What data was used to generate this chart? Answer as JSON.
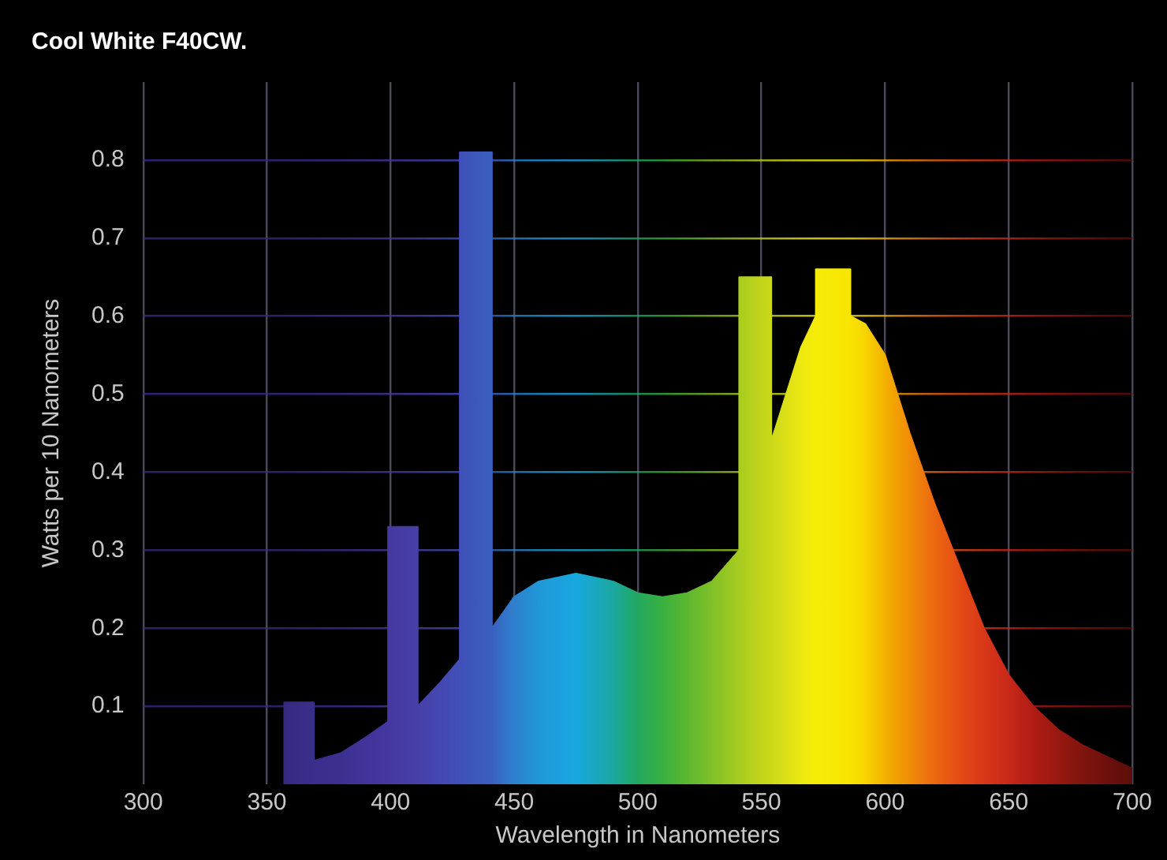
{
  "chart_data": {
    "type": "area",
    "title": "Cool White F40CW.",
    "xlabel": "Wavelength in Nanometers",
    "ylabel": "Watts per 10 Nanometers",
    "x": [
      357,
      357,
      369,
      369,
      380,
      390,
      399,
      399,
      411,
      411,
      420,
      428,
      428,
      441,
      441,
      450,
      460,
      475,
      490,
      500,
      510,
      520,
      530,
      541,
      541,
      554,
      554,
      560,
      566,
      572,
      572,
      586,
      586,
      592,
      600,
      610,
      620,
      630,
      640,
      650,
      660,
      670,
      680,
      690,
      700
    ],
    "values": [
      0,
      0.105,
      0.105,
      0.03,
      0.04,
      0.06,
      0.08,
      0.33,
      0.33,
      0.1,
      0.13,
      0.16,
      0.81,
      0.81,
      0.2,
      0.24,
      0.26,
      0.27,
      0.26,
      0.245,
      0.24,
      0.245,
      0.26,
      0.3,
      0.65,
      0.65,
      0.44,
      0.5,
      0.56,
      0.6,
      0.66,
      0.66,
      0.6,
      0.59,
      0.55,
      0.45,
      0.36,
      0.28,
      0.2,
      0.14,
      0.1,
      0.07,
      0.05,
      0.035,
      0.02
    ],
    "colors": [
      "#352a80",
      "#352a80",
      "#3a2e8c",
      "#3a2e8c",
      "#3c308f",
      "#40349a",
      "#4438a0",
      "#4438a0",
      "#4640a8",
      "#4640a8",
      "#4448b0",
      "#4050b8",
      "#4050b8",
      "#3a60c0",
      "#3a60c0",
      "#2e80cc",
      "#2098d8",
      "#18a8e0",
      "#1aa8a0",
      "#22a860",
      "#38b040",
      "#5cb830",
      "#80c028",
      "#a8cc20",
      "#a8cc20",
      "#ccd818",
      "#ccd818",
      "#dce018",
      "#ece810",
      "#f6ec08",
      "#f6ec08",
      "#f8e400",
      "#f8e400",
      "#f8d400",
      "#f4b000",
      "#f08c08",
      "#ec6810",
      "#e44c14",
      "#d83818",
      "#c82818",
      "#b01c14",
      "#981810",
      "#80140e",
      "#6c100c",
      "#5c0e0a"
    ],
    "xlim": [
      300,
      700
    ],
    "xticks": [
      300,
      350,
      400,
      450,
      500,
      550,
      600,
      650,
      700
    ],
    "ylim": [
      0,
      0.9
    ],
    "yticks": [
      0.1,
      0.2,
      0.3,
      0.4,
      0.5,
      0.6,
      0.7,
      0.8
    ],
    "grid": true,
    "legend": false
  }
}
